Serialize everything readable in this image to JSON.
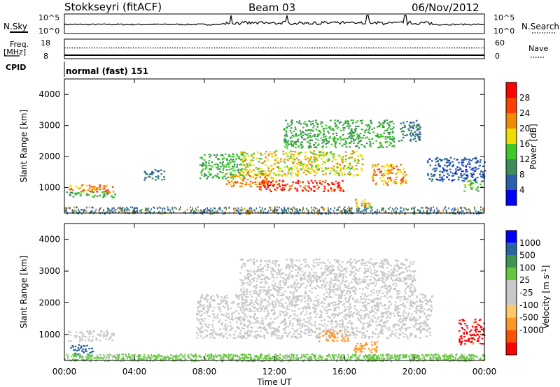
{
  "header": {
    "station": "Stokkseyri (fitACF)",
    "beam": "Beam 03",
    "date": "06/Nov/2012"
  },
  "noise_panel": {
    "left_label": "N.Sky",
    "right_label": "N.Search",
    "left_ticks": [
      "10^5",
      "10^0"
    ],
    "right_ticks": [
      "10^5",
      "10^0"
    ]
  },
  "freq_panel": {
    "left_label_1": "Freq.",
    "left_label_2": "[MHz]",
    "left_ticks": [
      "18",
      "8"
    ],
    "right_label": "Nave",
    "right_ticks": [
      "60",
      "0"
    ]
  },
  "cpid_panel": {
    "label": "CPID",
    "value": "normal (fast) 151"
  },
  "x_axis": {
    "label": "Time UT",
    "ticks": [
      "00:00",
      "04:00",
      "08:00",
      "12:00",
      "16:00",
      "20:00",
      "00:00"
    ]
  },
  "colors": {
    "power_scale": [
      "#0000ff",
      "#2a5fb0",
      "#3c8c5a",
      "#3cc828",
      "#f0dc00",
      "#f08c00",
      "#ff4000",
      "#ff0000"
    ],
    "velocity_scale": [
      "#ff0000",
      "#ff5000",
      "#ff9628",
      "#ffc864",
      "#c8c8c8",
      "#c8c8c8",
      "#64c83c",
      "#3c9650",
      "#2864a0",
      "#0000ff"
    ],
    "ground_scatter": "#c8c8c8"
  },
  "chart_data": [
    {
      "type": "line",
      "title": "N.Sky",
      "x_range_hours": [
        0,
        24
      ],
      "y_scale": "log",
      "ylim": [
        "10^0",
        "10^5"
      ],
      "description_values": {
        "baseline": "~10^2",
        "spikes_at_hours": [
          9.5,
          12.7,
          17.3,
          19.5
        ]
      }
    },
    {
      "type": "line",
      "title": "Freq. / Nave",
      "x_range_hours": [
        0,
        24
      ],
      "freq_ylim": [
        8,
        18
      ],
      "freq_value": 10.5,
      "nave_ylim": [
        0,
        60
      ],
      "nave_value": 33
    },
    {
      "type": "heatmap",
      "ylabel": "Slant Range [km]",
      "xlabel": "Time UT",
      "x_range_hours": [
        0,
        24
      ],
      "ylim": [
        180,
        4500
      ],
      "yticks": [
        1000,
        2000,
        3000,
        4000
      ],
      "colorbar": {
        "label": "Power [dB]",
        "ticks": [
          4,
          8,
          12,
          16,
          20,
          24,
          28
        ],
        "range": [
          0,
          30
        ]
      },
      "regions": [
        {
          "t0": 0.2,
          "t1": 2.8,
          "r0": 850,
          "r1": 1120,
          "value": 22
        },
        {
          "t0": 0.1,
          "t1": 2.9,
          "r0": 700,
          "r1": 900,
          "value": 12
        },
        {
          "t0": 4.5,
          "t1": 5.7,
          "r0": 1250,
          "r1": 1600,
          "value": 8
        },
        {
          "t0": 7.7,
          "t1": 10.3,
          "r0": 1300,
          "r1": 2100,
          "value": 12
        },
        {
          "t0": 9.2,
          "t1": 12.0,
          "r0": 1050,
          "r1": 1500,
          "value": 22
        },
        {
          "t0": 11.0,
          "t1": 16.0,
          "r0": 900,
          "r1": 1250,
          "value": 28
        },
        {
          "t0": 10.0,
          "t1": 17.0,
          "r0": 1400,
          "r1": 2200,
          "value": 18
        },
        {
          "t0": 12.5,
          "t1": 18.8,
          "r0": 2300,
          "r1": 3200,
          "value": 12
        },
        {
          "t0": 16.5,
          "t1": 17.6,
          "r0": 350,
          "r1": 650,
          "value": 20
        },
        {
          "t0": 17.5,
          "t1": 19.5,
          "r0": 1100,
          "r1": 1800,
          "value": 22
        },
        {
          "t0": 19.0,
          "t1": 20.3,
          "r0": 2500,
          "r1": 3200,
          "value": 8
        },
        {
          "t0": 20.7,
          "t1": 24.0,
          "r0": 1200,
          "r1": 2000,
          "value": 6
        },
        {
          "t0": 22.8,
          "t1": 23.8,
          "r0": 900,
          "r1": 1250,
          "value": 14
        }
      ]
    },
    {
      "type": "heatmap",
      "ylabel": "Slant Range [km]",
      "xlabel": "Time UT",
      "x_range_hours": [
        0,
        24
      ],
      "ylim": [
        180,
        4500
      ],
      "yticks": [
        1000,
        2000,
        3000,
        4000
      ],
      "colorbar": {
        "label": "Velocity [m s^-1]",
        "ticks": [
          1000,
          500,
          100,
          25,
          -25,
          -100,
          -500,
          -1000
        ]
      },
      "regions": [
        {
          "t0": 0.2,
          "t1": 2.8,
          "r0": 800,
          "r1": 1150,
          "value": 0
        },
        {
          "t0": 0.3,
          "t1": 1.6,
          "r0": 350,
          "r1": 700,
          "value": 300
        },
        {
          "t0": 7.5,
          "t1": 21.0,
          "r0": 900,
          "r1": 2300,
          "value": 0
        },
        {
          "t0": 10.0,
          "t1": 20.0,
          "r0": 2300,
          "r1": 3400,
          "value": 0
        },
        {
          "t0": 16.5,
          "t1": 18.0,
          "r0": 450,
          "r1": 800,
          "value": -300
        },
        {
          "t0": 14.5,
          "t1": 16.2,
          "r0": 800,
          "r1": 1150,
          "value": -200
        },
        {
          "t0": 22.5,
          "t1": 24.0,
          "r0": 700,
          "r1": 1500,
          "value": -600
        },
        {
          "t0": 0.5,
          "t1": 24.0,
          "r0": 180,
          "r1": 400,
          "value": 60
        }
      ]
    }
  ]
}
